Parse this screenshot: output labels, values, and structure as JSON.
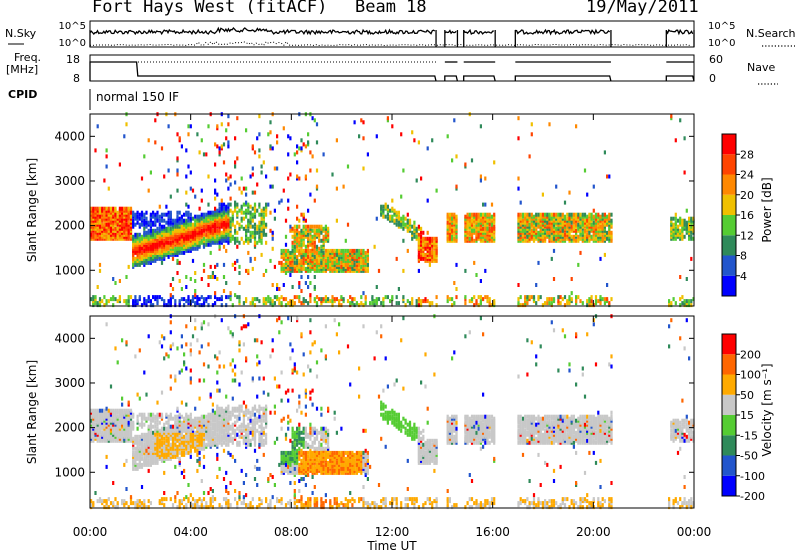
{
  "header": {
    "station": "Fort Hays West (fitACF)",
    "beam": "Beam 18",
    "date": "19/May/2011"
  },
  "side_labels": {
    "nsky": "N.Sky",
    "nsky_ticks": [
      "10^5",
      "10^0"
    ],
    "nsearch": "N.Search",
    "nsearch_ticks": [
      "10^5",
      "10^0"
    ],
    "freq": "Freq.",
    "freq_unit": "[MHz]",
    "freq_ticks": [
      "18",
      "8"
    ],
    "nave": "Nave",
    "nave_ticks": [
      "60",
      "0"
    ],
    "cpid": "CPID",
    "cpid_value": "normal 150 IF"
  },
  "chart_data": [
    {
      "type": "heatmap",
      "name": "power",
      "ylabel": "Slant Range [km]",
      "xlabel": "",
      "yticks": [
        "1000",
        "2000",
        "3000",
        "4000"
      ],
      "ylim": [
        200,
        4500
      ],
      "xlim_hours": [
        0,
        24
      ],
      "colorbar_label": "Power [dB]",
      "colorbar_ticks": [
        "4",
        "8",
        "12",
        "16",
        "20",
        "24",
        "28"
      ],
      "colors": [
        "#0000ff",
        "#2255cc",
        "#2f8a5a",
        "#55cc33",
        "#f0c000",
        "#ff8800",
        "#ff4400",
        "#ff0000"
      ]
    },
    {
      "type": "heatmap",
      "name": "velocity",
      "ylabel": "Slant Range [km]",
      "xlabel": "Time UT",
      "yticks": [
        "1000",
        "2000",
        "3000",
        "4000"
      ],
      "ylim": [
        200,
        4500
      ],
      "xlim_hours": [
        0,
        24
      ],
      "xticks": [
        "00:00",
        "04:00",
        "08:00",
        "12:00",
        "16:00",
        "20:00",
        "00:00"
      ],
      "colorbar_label": "Velocity [m s⁻¹]",
      "colorbar_ticks": [
        "200",
        "100",
        "50",
        "15",
        "-15",
        "-50",
        "-100",
        "-200"
      ],
      "colors": [
        "#0000ff",
        "#2255cc",
        "#2f8a5a",
        "#55cc33",
        "#c8c8c8",
        "#ffaa00",
        "#ff6600",
        "#ff0000"
      ]
    }
  ]
}
